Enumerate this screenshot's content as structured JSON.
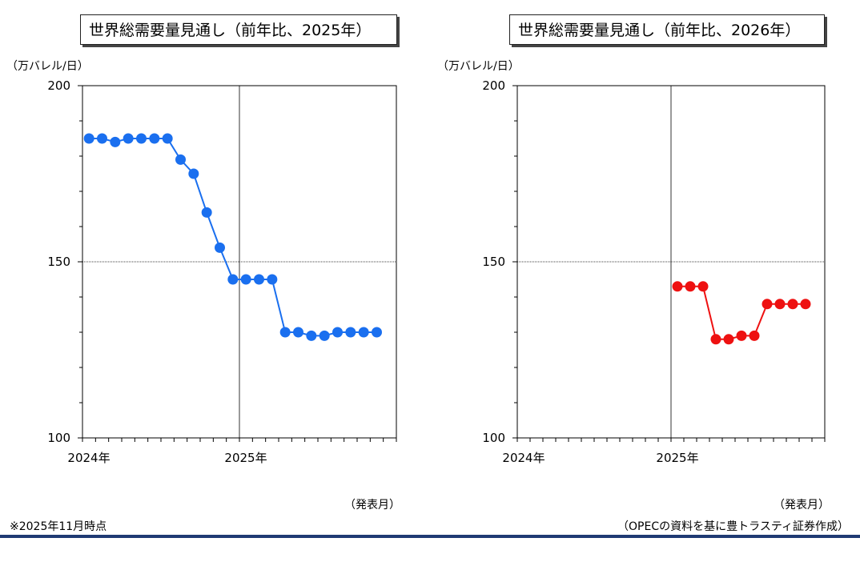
{
  "chart_data": [
    {
      "type": "line",
      "title": "世界総需要量見通し（前年比、2025年）",
      "unit_label": "（万バレル/日）",
      "xlabel": "（発表月）",
      "ylim": [
        100,
        200
      ],
      "yticks": [
        "100",
        "150",
        "200"
      ],
      "xticks": [
        "2024年",
        "2025年"
      ],
      "color": "#1a6fef",
      "grid": "dotted line at 150 and vertical line at 2025年",
      "x_start": "2024-01",
      "points": [
        185,
        185,
        184,
        185,
        185,
        185,
        185,
        179,
        175,
        164,
        154,
        145,
        145,
        145,
        145,
        130,
        130,
        129,
        129,
        130,
        130,
        130,
        130
      ]
    },
    {
      "type": "line",
      "title": "世界総需要量見通し（前年比、2026年）",
      "unit_label": "（万バレル/日）",
      "xlabel": "（発表月）",
      "ylim": [
        100,
        200
      ],
      "yticks": [
        "100",
        "150",
        "200"
      ],
      "xticks": [
        "2024年",
        "2025年"
      ],
      "color": "#ee1111",
      "grid": "dotted line at 150 and vertical line at 2025年",
      "x_start": "2025-01",
      "points": [
        143,
        143,
        143,
        128,
        128,
        129,
        129,
        138,
        138,
        138,
        138
      ]
    }
  ],
  "footer": {
    "note": "※2025年11月時点",
    "source": "（OPECの資料を基に豊トラスティ証券作成）"
  }
}
